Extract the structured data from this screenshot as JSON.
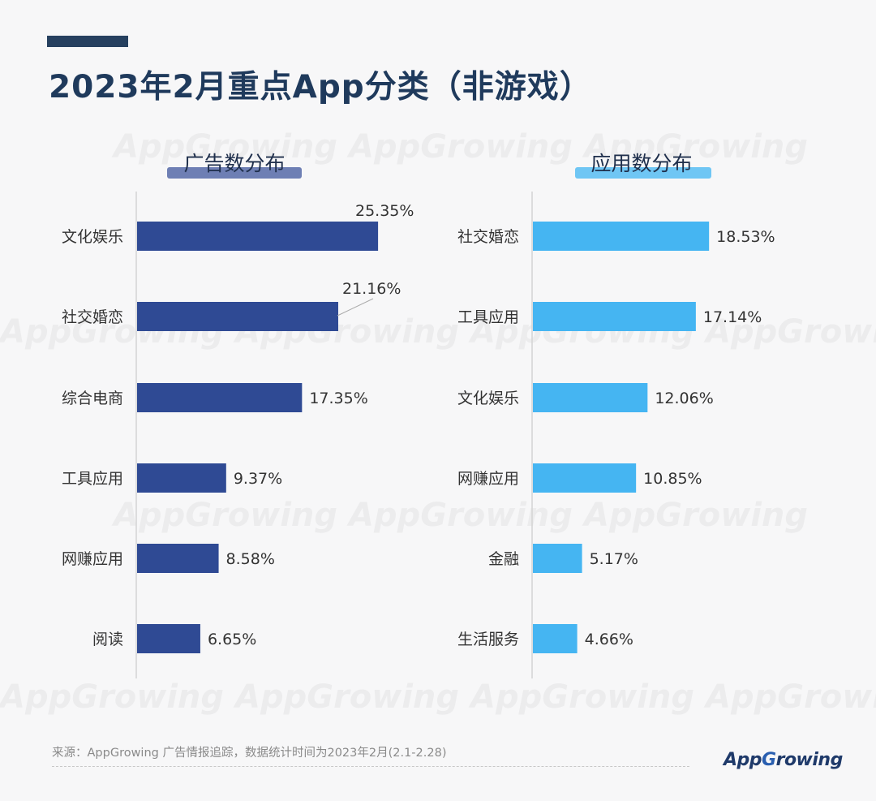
{
  "title": "2023年2月重点App分类（非游戏）",
  "watermark_text": "AppGrowing",
  "source": "来源：AppGrowing 广告情报追踪，数据统计时间为2023年2月(2.1-2.28)",
  "brand": "AppGrowing",
  "chart_data": [
    {
      "type": "bar",
      "orientation": "horizontal",
      "title": "广告数分布",
      "color": "#2f4a94",
      "title_highlight_color": "#6e7fb4",
      "categories": [
        "文化娱乐",
        "社交婚恋",
        "综合电商",
        "工具应用",
        "网赚应用",
        "阅读"
      ],
      "values": [
        25.35,
        21.16,
        17.35,
        9.37,
        8.58,
        6.65
      ],
      "labels": [
        "25.35%",
        "21.16%",
        "17.35%",
        "9.37%",
        "8.58%",
        "6.65%"
      ],
      "unit": "%"
    },
    {
      "type": "bar",
      "orientation": "horizontal",
      "title": "应用数分布",
      "color": "#45b5f2",
      "title_highlight_color": "#6fc6f4",
      "categories": [
        "社交婚恋",
        "工具应用",
        "文化娱乐",
        "网赚应用",
        "金融",
        "生活服务"
      ],
      "values": [
        18.53,
        17.14,
        12.06,
        10.85,
        5.17,
        4.66
      ],
      "labels": [
        "18.53%",
        "17.14%",
        "12.06%",
        "10.85%",
        "5.17%",
        "4.66%"
      ],
      "unit": "%"
    }
  ]
}
